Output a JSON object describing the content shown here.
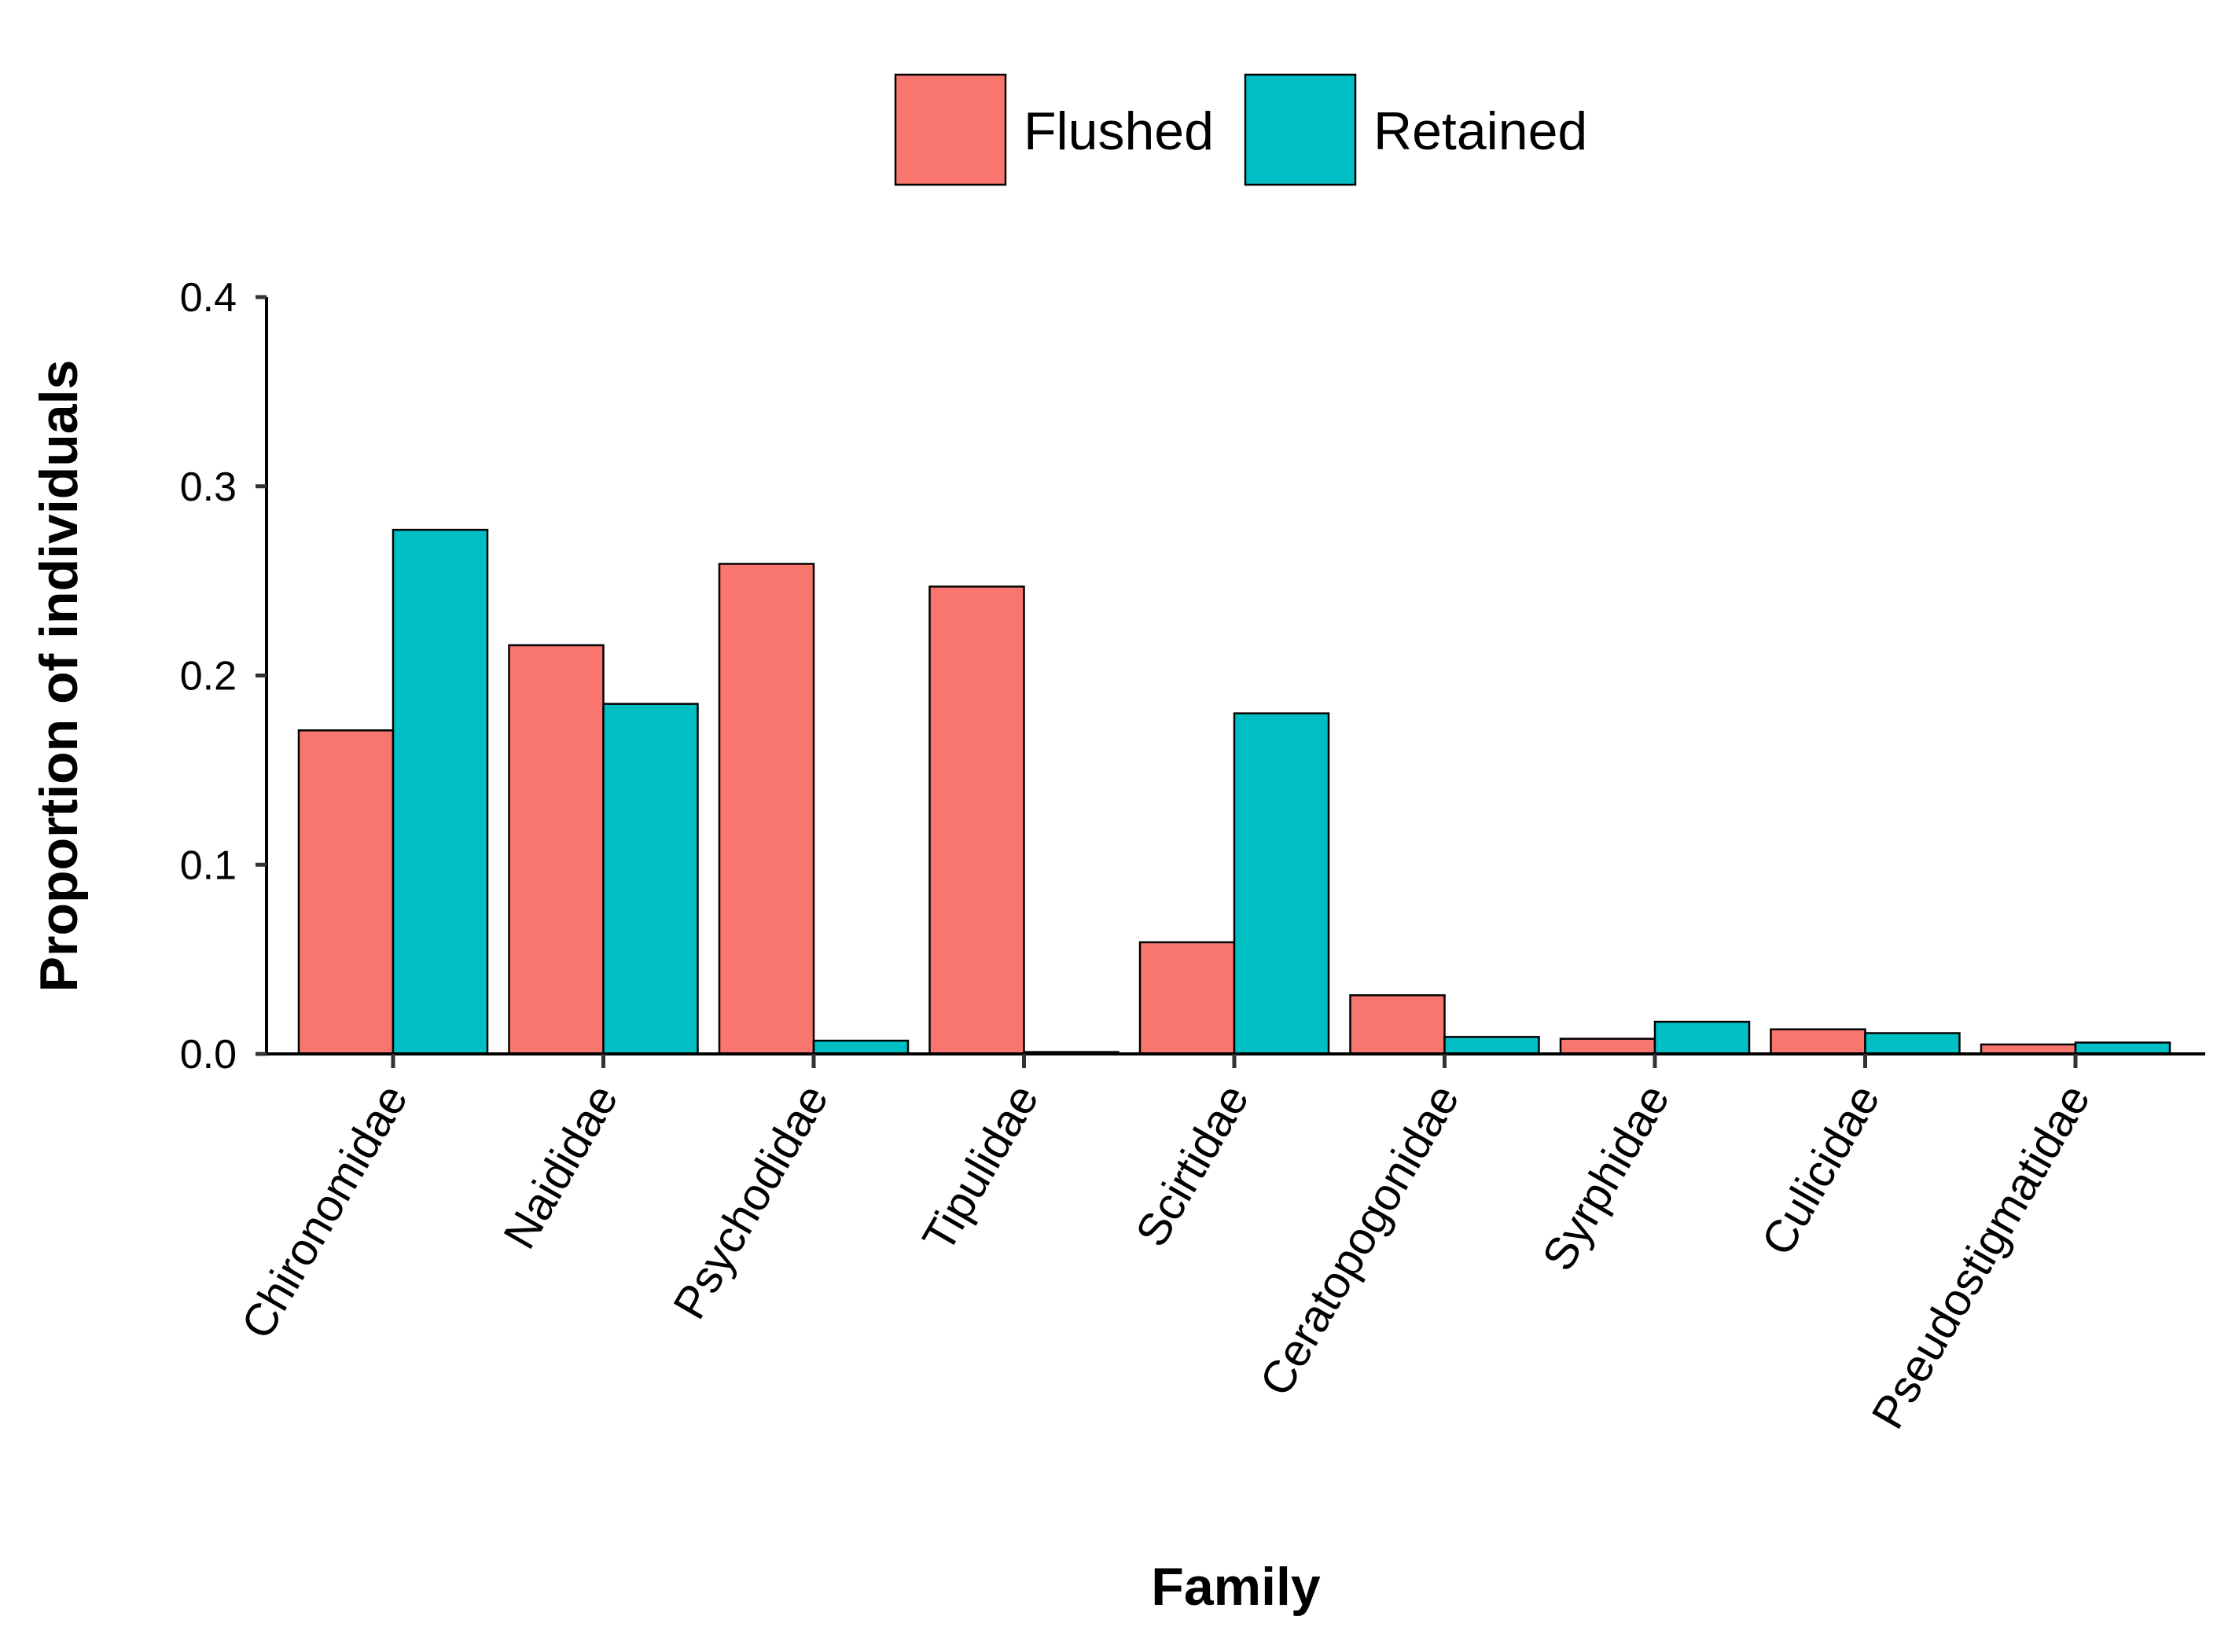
{
  "chart_data": {
    "type": "bar",
    "title": "",
    "xlabel": "Family",
    "ylabel": "Proportion of individuals",
    "ylim": [
      0,
      0.4
    ],
    "yticks": [
      "0.0",
      "0.1",
      "0.2",
      "0.3",
      "0.4"
    ],
    "ytick_values": [
      0,
      0.1,
      0.2,
      0.3,
      0.4
    ],
    "grid": false,
    "legend_position": "top",
    "categories": [
      "Chironomidae",
      "Naididae",
      "Psychodidae",
      "Tipulidae",
      "Scirtidae",
      "Ceratopogonidae",
      "Syrphidae",
      "Culicidae",
      "Pseudostigmatidae"
    ],
    "series": [
      {
        "name": "Flushed",
        "color": "#F8766D",
        "values": [
          0.171,
          0.216,
          0.259,
          0.247,
          0.059,
          0.031,
          0.008,
          0.013,
          0.005
        ]
      },
      {
        "name": "Retained",
        "color": "#00BFC4",
        "values": [
          0.277,
          0.185,
          0.007,
          0.001,
          0.18,
          0.009,
          0.017,
          0.011,
          0.006
        ]
      }
    ]
  }
}
